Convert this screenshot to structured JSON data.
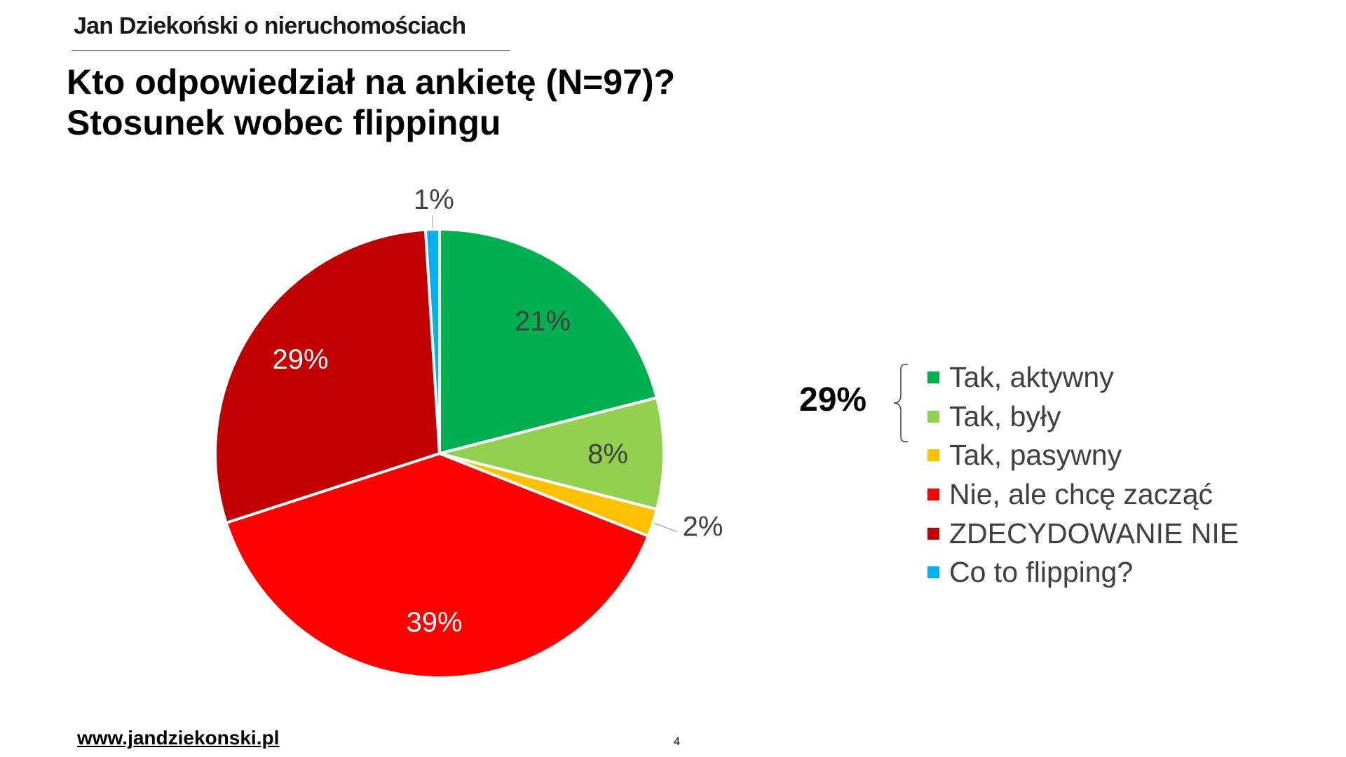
{
  "header": {
    "brand": "Jan Dziekoński o nieruchomościach",
    "title": "Kto odpowiedział na ankietę (N=97)?",
    "subtitle": "Stosunek wobec flippingu"
  },
  "chart_data": {
    "type": "pie",
    "categories": [
      "Tak, aktywny",
      "Tak, były",
      "Tak, pasywny",
      "Nie, ale chcę zacząć",
      "ZDECYDOWANIE NIE",
      "Co to flipping?"
    ],
    "values": [
      21,
      8,
      2,
      39,
      29,
      1
    ],
    "value_labels": [
      "21%",
      "8%",
      "2%",
      "39%",
      "29%",
      "1%"
    ],
    "colors": [
      "#00B050",
      "#92D050",
      "#FFC000",
      "#FF0000",
      "#C00000",
      "#00B0F0"
    ],
    "legend_position": "right",
    "group_annotation": {
      "value": "29%",
      "covers": [
        "Tak, aktywny",
        "Tak, były"
      ]
    }
  },
  "footer": {
    "url": "www.jandziekonski.pl",
    "page_number": "4"
  }
}
